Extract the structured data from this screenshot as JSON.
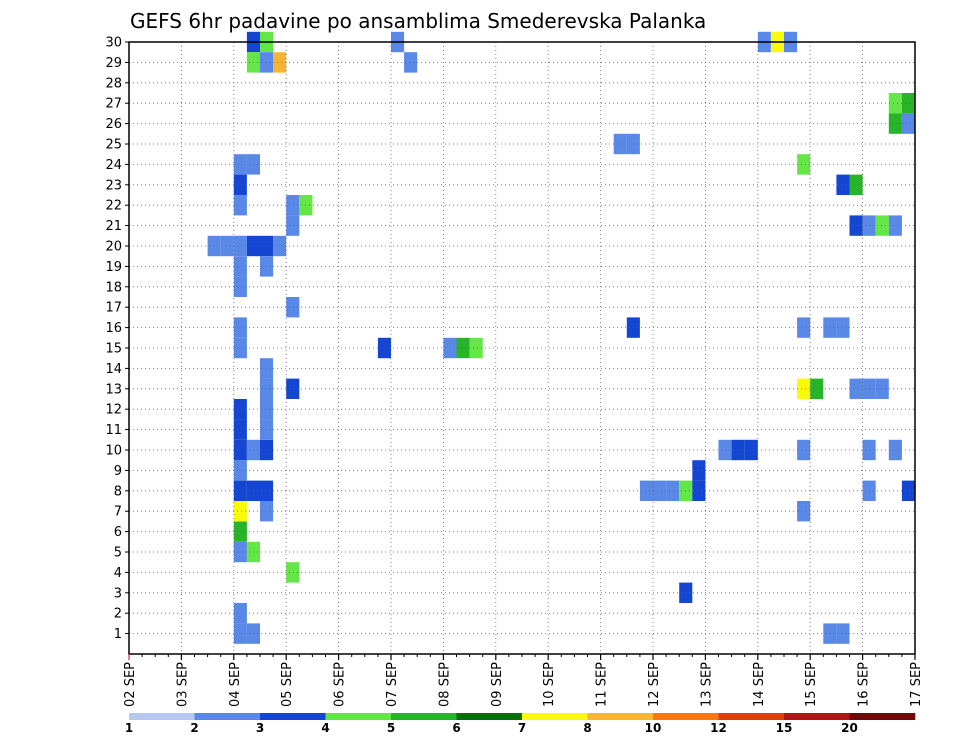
{
  "chart_data": {
    "type": "heatmap",
    "title": "GEFS 6hr padavine po ansamblima Smederevska Palanka",
    "x_ticks": [
      "02 SEP",
      "03 SEP",
      "04 SEP",
      "05 SEP",
      "06 SEP",
      "07 SEP",
      "08 SEP",
      "09 SEP",
      "10 SEP",
      "11 SEP",
      "12 SEP",
      "13 SEP",
      "14 SEP",
      "15 SEP",
      "16 SEP",
      "17 SEP"
    ],
    "y_ticks": [
      "1",
      "2",
      "3",
      "4",
      "5",
      "6",
      "7",
      "8",
      "9",
      "10",
      "11",
      "12",
      "13",
      "14",
      "15",
      "16",
      "17",
      "18",
      "19",
      "20",
      "21",
      "22",
      "23",
      "24",
      "25",
      "26",
      "27",
      "28",
      "29",
      "30"
    ],
    "xlim": [
      0,
      15
    ],
    "ylim": [
      0,
      30
    ],
    "grid": true,
    "colorbar": {
      "labels": [
        "1",
        "2",
        "3",
        "4",
        "5",
        "6",
        "7",
        "8",
        "10",
        "12",
        "15",
        "20"
      ],
      "colors": [
        "#b4c8f0",
        "#5a88e6",
        "#1446d2",
        "#64e646",
        "#28b428",
        "#0a6e0a",
        "#fafa0a",
        "#f8b432",
        "#f87814",
        "#e63c0a",
        "#b41414",
        "#6e0a0a"
      ]
    },
    "cells": [
      {
        "d": 2.0,
        "m": 1,
        "c": 1
      },
      {
        "d": 2.25,
        "m": 1,
        "c": 1
      },
      {
        "d": 5.0,
        "m": 30,
        "c": 1
      },
      {
        "d": 5.25,
        "m": 29,
        "c": 1
      },
      {
        "d": 2.0,
        "m": 2,
        "c": 1
      },
      {
        "d": 2.0,
        "m": 5,
        "c": 1
      },
      {
        "d": 2.25,
        "m": 5,
        "c": 3
      },
      {
        "d": 2.0,
        "m": 6,
        "c": 4
      },
      {
        "d": 2.0,
        "m": 7,
        "c": 6
      },
      {
        "d": 2.5,
        "m": 7,
        "c": 1
      },
      {
        "d": 2.0,
        "m": 8,
        "c": 2
      },
      {
        "d": 2.25,
        "m": 8,
        "c": 2
      },
      {
        "d": 2.5,
        "m": 8,
        "c": 2
      },
      {
        "d": 2.0,
        "m": 9,
        "c": 1
      },
      {
        "d": 2.0,
        "m": 10,
        "c": 2
      },
      {
        "d": 2.25,
        "m": 10,
        "c": 1
      },
      {
        "d": 2.5,
        "m": 10,
        "c": 2
      },
      {
        "d": 2.0,
        "m": 11,
        "c": 2
      },
      {
        "d": 2.5,
        "m": 11,
        "c": 1
      },
      {
        "d": 2.0,
        "m": 12,
        "c": 2
      },
      {
        "d": 2.5,
        "m": 12,
        "c": 1
      },
      {
        "d": 2.5,
        "m": 13,
        "c": 1
      },
      {
        "d": 2.5,
        "m": 14,
        "c": 1
      },
      {
        "d": 2.0,
        "m": 15,
        "c": 1
      },
      {
        "d": 2.0,
        "m": 16,
        "c": 1
      },
      {
        "d": 1.5,
        "m": 20,
        "c": 1
      },
      {
        "d": 1.75,
        "m": 20,
        "c": 1
      },
      {
        "d": 2.0,
        "m": 20,
        "c": 1
      },
      {
        "d": 2.25,
        "m": 20,
        "c": 2
      },
      {
        "d": 2.0,
        "m": 19,
        "c": 1
      },
      {
        "d": 2.0,
        "m": 18,
        "c": 1
      },
      {
        "d": 2.5,
        "m": 20,
        "c": 2
      },
      {
        "d": 2.75,
        "m": 20,
        "c": 1
      },
      {
        "d": 2.5,
        "m": 19,
        "c": 1
      },
      {
        "d": 2.0,
        "m": 22,
        "c": 1
      },
      {
        "d": 2.0,
        "m": 23,
        "c": 2
      },
      {
        "d": 2.0,
        "m": 24,
        "c": 1
      },
      {
        "d": 2.25,
        "m": 24,
        "c": 1
      },
      {
        "d": 2.25,
        "m": 30,
        "c": 2
      },
      {
        "d": 2.5,
        "m": 30,
        "c": 3
      },
      {
        "d": 2.25,
        "m": 29,
        "c": 3
      },
      {
        "d": 2.5,
        "m": 29,
        "c": 1
      },
      {
        "d": 2.75,
        "m": 29,
        "c": 7
      },
      {
        "d": 3.0,
        "m": 4,
        "c": 3
      },
      {
        "d": 3.0,
        "m": 13,
        "c": 2
      },
      {
        "d": 3.0,
        "m": 17,
        "c": 1
      },
      {
        "d": 3.0,
        "m": 21,
        "c": 1
      },
      {
        "d": 3.0,
        "m": 22,
        "c": 1
      },
      {
        "d": 3.25,
        "m": 22,
        "c": 3
      },
      {
        "d": 4.75,
        "m": 15,
        "c": 2
      },
      {
        "d": 6.0,
        "m": 15,
        "c": 1
      },
      {
        "d": 6.25,
        "m": 15,
        "c": 4
      },
      {
        "d": 6.5,
        "m": 15,
        "c": 3
      },
      {
        "d": 9.25,
        "m": 25,
        "c": 1
      },
      {
        "d": 9.5,
        "m": 25,
        "c": 1
      },
      {
        "d": 9.5,
        "m": 16,
        "c": 2
      },
      {
        "d": 9.75,
        "m": 8,
        "c": 1
      },
      {
        "d": 10.0,
        "m": 8,
        "c": 1
      },
      {
        "d": 10.25,
        "m": 8,
        "c": 1
      },
      {
        "d": 10.5,
        "m": 8,
        "c": 3
      },
      {
        "d": 10.75,
        "m": 8,
        "c": 2
      },
      {
        "d": 10.75,
        "m": 9,
        "c": 2
      },
      {
        "d": 10.5,
        "m": 3,
        "c": 2
      },
      {
        "d": 11.25,
        "m": 10,
        "c": 1
      },
      {
        "d": 11.5,
        "m": 10,
        "c": 2
      },
      {
        "d": 11.75,
        "m": 10,
        "c": 2
      },
      {
        "d": 12.0,
        "m": 30,
        "c": 1
      },
      {
        "d": 12.25,
        "m": 30,
        "c": 6
      },
      {
        "d": 12.5,
        "m": 30,
        "c": 1
      },
      {
        "d": 12.75,
        "m": 24,
        "c": 3
      },
      {
        "d": 12.75,
        "m": 16,
        "c": 1
      },
      {
        "d": 13.25,
        "m": 16,
        "c": 1
      },
      {
        "d": 13.5,
        "m": 16,
        "c": 1
      },
      {
        "d": 12.75,
        "m": 13,
        "c": 6
      },
      {
        "d": 13.0,
        "m": 13,
        "c": 4
      },
      {
        "d": 12.75,
        "m": 10,
        "c": 1
      },
      {
        "d": 12.75,
        "m": 7,
        "c": 1
      },
      {
        "d": 13.5,
        "m": 23,
        "c": 2
      },
      {
        "d": 13.75,
        "m": 23,
        "c": 4
      },
      {
        "d": 13.75,
        "m": 21,
        "c": 2
      },
      {
        "d": 14.0,
        "m": 21,
        "c": 1
      },
      {
        "d": 14.25,
        "m": 21,
        "c": 3
      },
      {
        "d": 14.5,
        "m": 21,
        "c": 1
      },
      {
        "d": 13.75,
        "m": 13,
        "c": 1
      },
      {
        "d": 14.0,
        "m": 13,
        "c": 1
      },
      {
        "d": 14.25,
        "m": 13,
        "c": 1
      },
      {
        "d": 14.0,
        "m": 10,
        "c": 1
      },
      {
        "d": 14.5,
        "m": 10,
        "c": 1
      },
      {
        "d": 14.0,
        "m": 8,
        "c": 1
      },
      {
        "d": 14.75,
        "m": 8,
        "c": 2
      },
      {
        "d": 14.5,
        "m": 27,
        "c": 3
      },
      {
        "d": 14.75,
        "m": 27,
        "c": 4
      },
      {
        "d": 14.5,
        "m": 26,
        "c": 4
      },
      {
        "d": 14.75,
        "m": 26,
        "c": 1
      },
      {
        "d": 13.25,
        "m": 1,
        "c": 1
      },
      {
        "d": 13.5,
        "m": 1,
        "c": 1
      }
    ]
  }
}
